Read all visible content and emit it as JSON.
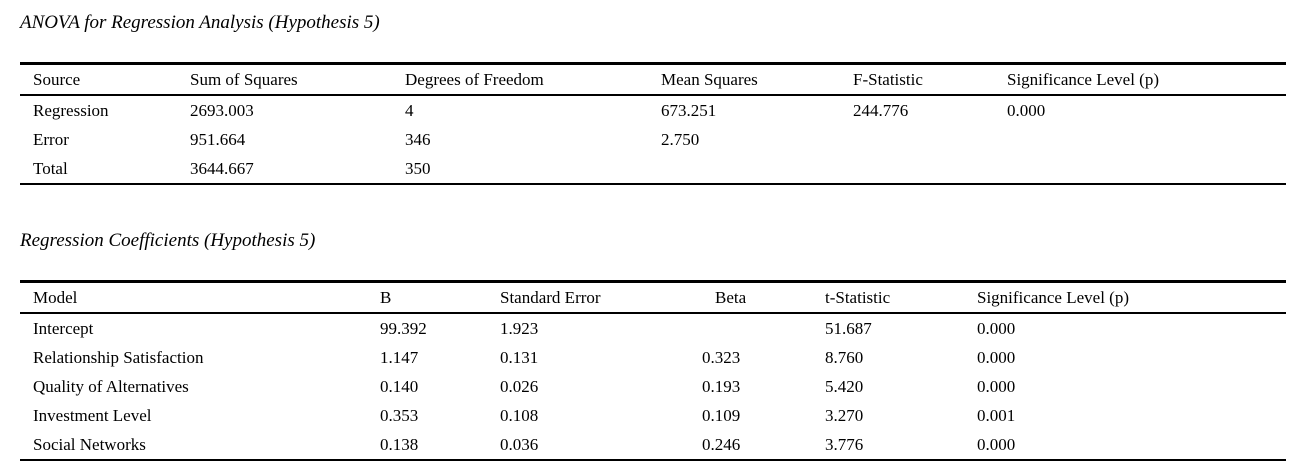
{
  "colors": {
    "background": "#ffffff",
    "text": "#000000",
    "rule": "#000000"
  },
  "anova_table": {
    "title": "ANOVA for Regression Analysis (Hypothesis 5)",
    "columns": [
      "Source",
      "Sum of Squares",
      "Degrees of Freedom",
      "Mean Squares",
      "F-Statistic",
      "Significance Level (p)"
    ],
    "rows": [
      [
        "Regression",
        "2693.003",
        "4",
        "673.251",
        "244.776",
        "0.000"
      ],
      [
        "Error",
        "951.664",
        "346",
        "2.750",
        "",
        ""
      ],
      [
        "Total",
        "3644.667",
        "350",
        "",
        "",
        ""
      ]
    ]
  },
  "coefficients_table": {
    "title": "Regression Coefficients (Hypothesis 5)",
    "columns": [
      "Model",
      "B",
      "Standard Error",
      "Beta",
      "t-Statistic",
      "Significance Level (p)"
    ],
    "rows": [
      [
        "Intercept",
        "99.392",
        "1.923",
        "",
        "51.687",
        "0.000"
      ],
      [
        "Relationship Satisfaction",
        "1.147",
        "0.131",
        "0.323",
        "8.760",
        "0.000"
      ],
      [
        "Quality of Alternatives",
        "0.140",
        "0.026",
        "0.193",
        "5.420",
        "0.000"
      ],
      [
        "Investment Level",
        "0.353",
        "0.108",
        "0.109",
        "3.270",
        "0.001"
      ],
      [
        "Social Networks",
        "0.138",
        "0.036",
        "0.246",
        "3.776",
        "0.000"
      ]
    ]
  }
}
